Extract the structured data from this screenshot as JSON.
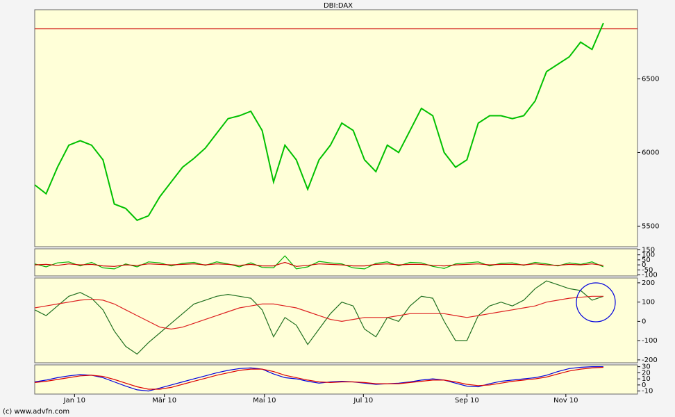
{
  "chart_data": [
    {
      "type": "line",
      "title": "DBI:DAX",
      "x": [
        0,
        1,
        2,
        3,
        4,
        5,
        6,
        7,
        8,
        9,
        10,
        11,
        12,
        13,
        14,
        15,
        16,
        17,
        18,
        19,
        20,
        21,
        22,
        23,
        24,
        25,
        26,
        27,
        28,
        29,
        30,
        31,
        32,
        33,
        34,
        35,
        36,
        37,
        38,
        39,
        40,
        41,
        42,
        43,
        44,
        45,
        46,
        47,
        48,
        49,
        50
      ],
      "xlim": [
        0,
        53
      ],
      "xticks": [
        {
          "value": 3.5,
          "label": "Jan 10"
        },
        {
          "value": 11.4,
          "label": "Mär 10"
        },
        {
          "value": 20.2,
          "label": "Mai 10"
        },
        {
          "value": 28.9,
          "label": "Jul 10"
        },
        {
          "value": 38,
          "label": "Sep 10"
        },
        {
          "value": 46.7,
          "label": "Nov 10"
        }
      ],
      "ylim": [
        5360,
        6970
      ],
      "yticks": [
        5500,
        6000,
        6500
      ],
      "reference_line": 6840,
      "reference_color": "#cc0000",
      "series": [
        {
          "color": "#00c000",
          "values": [
            5780,
            5720,
            5900,
            6050,
            6080,
            6050,
            5950,
            5650,
            5620,
            5540,
            5570,
            5700,
            5800,
            5900,
            5960,
            6030,
            6130,
            6230,
            6250,
            6280,
            6150,
            5800,
            6050,
            5950,
            5750,
            5950,
            6050,
            6200,
            6150,
            5950,
            5870,
            6050,
            6000,
            6150,
            6300,
            6250,
            6000,
            5900,
            5950,
            6200,
            6250,
            6250,
            6230,
            6250,
            6350,
            6550,
            6600,
            6650,
            6750,
            6700,
            6880
          ]
        }
      ]
    },
    {
      "type": "line",
      "ylim": [
        -110,
        160
      ],
      "yticks": [
        150,
        100,
        50,
        0,
        -50,
        -100
      ],
      "series": [
        {
          "color": "#00b000",
          "values": [
            10,
            -20,
            20,
            30,
            -10,
            25,
            -30,
            -40,
            10,
            -20,
            30,
            20,
            -10,
            15,
            25,
            -5,
            30,
            10,
            -20,
            20,
            -25,
            -30,
            90,
            -40,
            -20,
            35,
            20,
            10,
            -30,
            -40,
            15,
            30,
            -10,
            25,
            20,
            -15,
            -35,
            10,
            20,
            30,
            -10,
            15,
            20,
            -5,
            25,
            10,
            -10,
            20,
            5,
            30,
            -20
          ]
        },
        {
          "color": "#cc0000",
          "values": [
            0,
            5,
            -5,
            10,
            0,
            5,
            -10,
            -15,
            0,
            -5,
            10,
            5,
            0,
            5,
            10,
            0,
            10,
            5,
            -5,
            5,
            -10,
            -10,
            25,
            -15,
            -5,
            10,
            5,
            0,
            -10,
            -10,
            5,
            10,
            0,
            5,
            5,
            -5,
            -10,
            0,
            5,
            10,
            0,
            5,
            5,
            0,
            10,
            0,
            -5,
            5,
            0,
            10,
            -5
          ]
        }
      ]
    },
    {
      "type": "line",
      "ylim": [
        -215,
        225
      ],
      "yticks": [
        200,
        100,
        0,
        -100,
        -200
      ],
      "series": [
        {
          "color": "#207020",
          "values": [
            60,
            30,
            80,
            130,
            150,
            120,
            60,
            -50,
            -130,
            -170,
            -110,
            -60,
            -10,
            40,
            90,
            110,
            130,
            140,
            130,
            120,
            60,
            -80,
            20,
            -20,
            -120,
            -40,
            40,
            100,
            80,
            -40,
            -80,
            20,
            0,
            80,
            130,
            120,
            0,
            -100,
            -100,
            30,
            80,
            100,
            80,
            110,
            170,
            210,
            190,
            170,
            160,
            110,
            130
          ]
        },
        {
          "color": "#dd2020",
          "values": [
            70,
            80,
            90,
            100,
            110,
            115,
            110,
            90,
            60,
            30,
            0,
            -30,
            -40,
            -30,
            -10,
            10,
            30,
            50,
            70,
            80,
            90,
            90,
            80,
            70,
            50,
            30,
            10,
            0,
            10,
            20,
            20,
            20,
            30,
            40,
            40,
            40,
            40,
            30,
            20,
            30,
            40,
            50,
            60,
            70,
            80,
            100,
            110,
            120,
            125,
            130,
            130
          ]
        }
      ]
    },
    {
      "type": "line",
      "ylim": [
        -15,
        33
      ],
      "yticks": [
        30,
        20,
        10,
        0,
        -10
      ],
      "series": [
        {
          "color": "#0000dd",
          "values": [
            5,
            8,
            12,
            15,
            17,
            16,
            12,
            5,
            -2,
            -8,
            -10,
            -5,
            0,
            5,
            10,
            15,
            20,
            24,
            27,
            28,
            26,
            18,
            12,
            10,
            6,
            3,
            5,
            6,
            5,
            3,
            1,
            2,
            3,
            5,
            8,
            10,
            8,
            3,
            -2,
            -3,
            2,
            6,
            8,
            10,
            12,
            16,
            22,
            27,
            29,
            30,
            30
          ]
        },
        {
          "color": "#dd0000",
          "values": [
            4,
            6,
            9,
            12,
            15,
            16,
            14,
            9,
            3,
            -3,
            -7,
            -7,
            -4,
            1,
            6,
            11,
            16,
            20,
            24,
            26,
            26,
            22,
            16,
            12,
            8,
            5,
            4,
            5,
            5,
            4,
            2,
            2,
            2,
            4,
            6,
            8,
            8,
            5,
            1,
            -1,
            0,
            3,
            6,
            8,
            10,
            13,
            18,
            23,
            26,
            28,
            29
          ]
        }
      ]
    }
  ],
  "footer": "(c) www.advfn.com"
}
